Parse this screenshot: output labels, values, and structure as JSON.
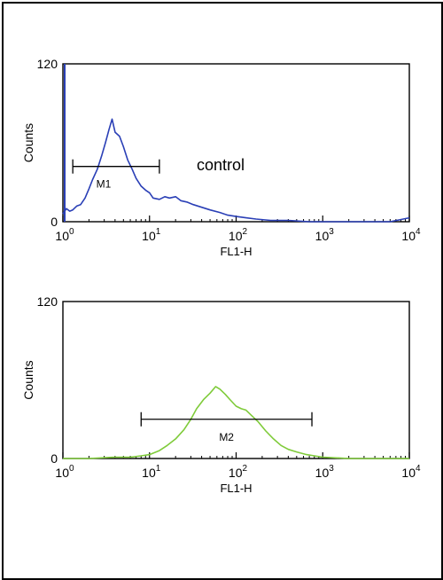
{
  "colors": {
    "control": "#2a3fb6",
    "sample": "#7fcb3a",
    "axis": "#000000"
  },
  "chart_data": [
    {
      "type": "line",
      "panel": "top",
      "xlabel": "FL1-H",
      "ylabel": "Counts",
      "x_scale": "log",
      "xlim": [
        1,
        10000
      ],
      "ylim": [
        0,
        120
      ],
      "y_ticks": [
        "0",
        "120"
      ],
      "x_ticks": [
        {
          "base": "10",
          "exp": "0",
          "value": 1
        },
        {
          "base": "10",
          "exp": "1",
          "value": 10
        },
        {
          "base": "10",
          "exp": "2",
          "value": 100
        },
        {
          "base": "10",
          "exp": "3",
          "value": 1000
        },
        {
          "base": "10",
          "exp": "4",
          "value": 10000
        }
      ],
      "annotation": "control",
      "series": [
        {
          "color": "#2a3fb6",
          "points": [
            [
              1,
              6
            ],
            [
              1.1,
              10
            ],
            [
              1.2,
              8
            ],
            [
              1.3,
              9
            ],
            [
              1.45,
              12
            ],
            [
              1.6,
              13
            ],
            [
              1.8,
              18
            ],
            [
              2.0,
              25
            ],
            [
              2.2,
              32
            ],
            [
              2.5,
              40
            ],
            [
              2.8,
              50
            ],
            [
              3.1,
              60
            ],
            [
              3.4,
              70
            ],
            [
              3.7,
              78
            ],
            [
              4.0,
              68
            ],
            [
              4.5,
              65
            ],
            [
              5.0,
              57
            ],
            [
              5.6,
              47
            ],
            [
              6.3,
              40
            ],
            [
              7.0,
              33
            ],
            [
              8.0,
              27
            ],
            [
              9.0,
              24
            ],
            [
              10,
              22
            ],
            [
              11,
              18
            ],
            [
              13,
              17
            ],
            [
              15,
              19
            ],
            [
              17,
              18
            ],
            [
              20,
              19
            ],
            [
              23,
              16
            ],
            [
              27,
              15
            ],
            [
              32,
              13
            ],
            [
              40,
              11
            ],
            [
              50,
              9
            ],
            [
              65,
              7
            ],
            [
              80,
              5
            ],
            [
              100,
              4
            ],
            [
              130,
              3
            ],
            [
              170,
              2
            ],
            [
              250,
              1
            ],
            [
              400,
              1
            ],
            [
              700,
              0
            ],
            [
              1200,
              0
            ],
            [
              3000,
              0
            ],
            [
              6000,
              0
            ],
            [
              10000,
              3
            ]
          ]
        }
      ],
      "markers": [
        {
          "label": "M1",
          "x_start": 1.3,
          "x_end": 13,
          "y": 42
        }
      ]
    },
    {
      "type": "line",
      "panel": "bottom",
      "xlabel": "FL1-H",
      "ylabel": "Counts",
      "x_scale": "log",
      "xlim": [
        1,
        10000
      ],
      "ylim": [
        0,
        120
      ],
      "y_ticks": [
        "0",
        "120"
      ],
      "x_ticks": [
        {
          "base": "10",
          "exp": "0",
          "value": 1
        },
        {
          "base": "10",
          "exp": "1",
          "value": 10
        },
        {
          "base": "10",
          "exp": "2",
          "value": 100
        },
        {
          "base": "10",
          "exp": "3",
          "value": 1000
        },
        {
          "base": "10",
          "exp": "4",
          "value": 10000
        }
      ],
      "series": [
        {
          "color": "#7fcb3a",
          "points": [
            [
              1,
              0
            ],
            [
              2,
              0
            ],
            [
              4,
              1
            ],
            [
              6,
              1
            ],
            [
              8,
              2
            ],
            [
              10,
              3
            ],
            [
              13,
              6
            ],
            [
              16,
              10
            ],
            [
              20,
              15
            ],
            [
              25,
              22
            ],
            [
              30,
              30
            ],
            [
              35,
              38
            ],
            [
              42,
              45
            ],
            [
              50,
              50
            ],
            [
              58,
              55
            ],
            [
              65,
              53
            ],
            [
              75,
              49
            ],
            [
              85,
              45
            ],
            [
              100,
              40
            ],
            [
              115,
              38
            ],
            [
              130,
              37
            ],
            [
              150,
              33
            ],
            [
              180,
              28
            ],
            [
              220,
              21
            ],
            [
              270,
              15
            ],
            [
              330,
              10
            ],
            [
              400,
              7
            ],
            [
              500,
              5
            ],
            [
              650,
              3
            ],
            [
              800,
              2
            ],
            [
              1000,
              1
            ],
            [
              2000,
              0
            ],
            [
              10000,
              0
            ]
          ]
        }
      ],
      "markers": [
        {
          "label": "M2",
          "x_start": 8,
          "x_end": 750,
          "y": 30
        }
      ]
    }
  ]
}
